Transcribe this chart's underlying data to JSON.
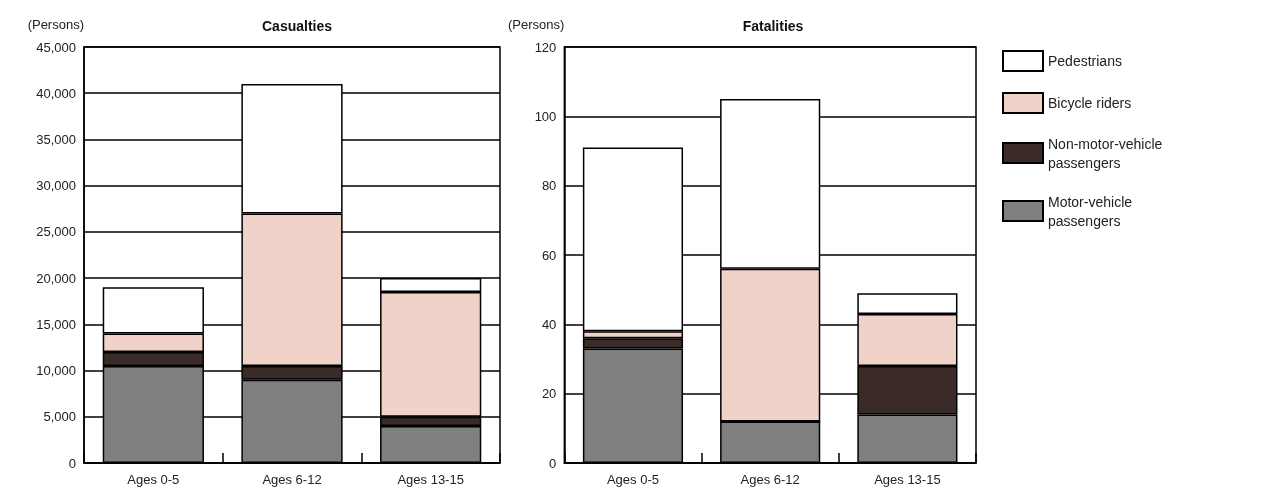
{
  "chart_data": [
    {
      "type": "bar",
      "title": "Casualties",
      "ylabel": "(Persons)",
      "stacked": true,
      "grid": "y",
      "legend": false,
      "categories": [
        "Ages 0-5",
        "Ages 6-12",
        "Ages 13-15"
      ],
      "ylim": [
        0,
        45000
      ],
      "yticks": [
        {
          "value": 0,
          "label": "0"
        },
        {
          "value": 5000,
          "label": "5,000"
        },
        {
          "value": 10000,
          "label": "10,000"
        },
        {
          "value": 15000,
          "label": "15,000"
        },
        {
          "value": 20000,
          "label": "20,000"
        },
        {
          "value": 25000,
          "label": "25,000"
        },
        {
          "value": 30000,
          "label": "30,000"
        },
        {
          "value": 35000,
          "label": "35,000"
        },
        {
          "value": 40000,
          "label": "40,000"
        },
        {
          "value": 45000,
          "label": "45,000"
        }
      ],
      "series": [
        {
          "color": "#7f7f7f",
          "values": [
            10500,
            9000,
            4000
          ]
        },
        {
          "color": "#3a2a28",
          "values": [
            1500,
            1500,
            1000
          ]
        },
        {
          "color": "#f0d2c8",
          "values": [
            2000,
            16500,
            13500
          ]
        },
        {
          "color": "#ffffff",
          "values": [
            5000,
            14000,
            1500
          ]
        }
      ]
    },
    {
      "type": "bar",
      "title": "Fatalities",
      "ylabel": "(Persons)",
      "stacked": true,
      "grid": "y",
      "legend": "right",
      "categories": [
        "Ages 0-5",
        "Ages 6-12",
        "Ages 13-15"
      ],
      "ylim": [
        0,
        120
      ],
      "yticks": [
        0,
        20,
        40,
        60,
        80,
        100,
        120
      ],
      "series": [
        {
          "name": "Motor-vehicle passengers",
          "color": "#7f7f7f",
          "values": [
            33,
            12,
            14
          ]
        },
        {
          "name": "Non-motor-vehicle passengers",
          "color": "#3a2a28",
          "values": [
            3,
            0,
            14
          ]
        },
        {
          "name": "Bicycle riders",
          "color": "#f0d2c8",
          "values": [
            2,
            44,
            15
          ]
        },
        {
          "name": "Pedestrians",
          "color": "#ffffff",
          "values": [
            53,
            49,
            6
          ]
        }
      ]
    }
  ]
}
